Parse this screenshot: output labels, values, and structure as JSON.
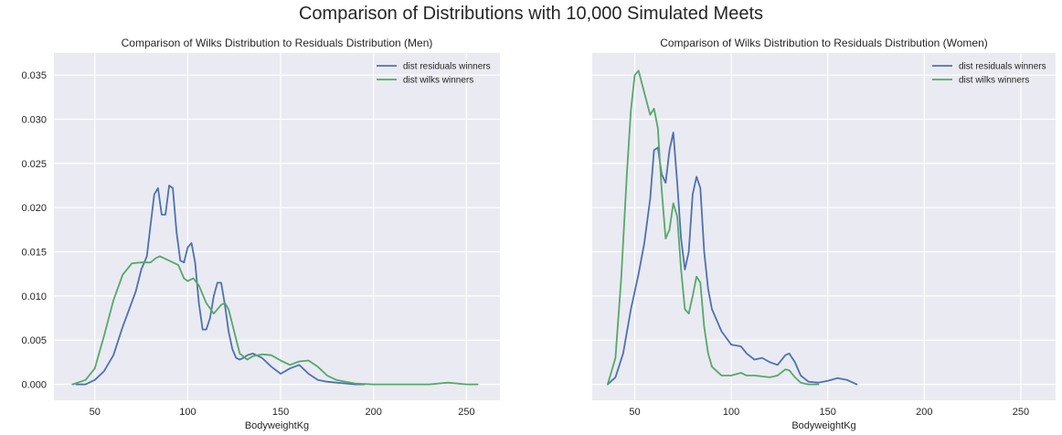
{
  "figure": {
    "suptitle": "Comparison of Distributions with 10,000 Simulated Meets"
  },
  "chart_data": [
    {
      "type": "line",
      "title": "Comparison of Wilks Distribution to Residuals Distribution (Men)",
      "xlabel": "BodyweightKg",
      "ylabel": "",
      "xlim": [
        28,
        268
      ],
      "ylim": [
        -0.0018,
        0.0375
      ],
      "xticks": [
        50,
        100,
        150,
        200,
        250
      ],
      "yticks": [
        0.0,
        0.005,
        0.01,
        0.015,
        0.02,
        0.025,
        0.03,
        0.035
      ],
      "ytick_labels": [
        "0.000",
        "0.005",
        "0.010",
        "0.015",
        "0.020",
        "0.025",
        "0.030",
        "0.035"
      ],
      "grid": true,
      "legend_position": "top-right",
      "series": [
        {
          "name": "dist residuals winners",
          "color": "#4c72b0",
          "x": [
            40,
            45,
            50,
            55,
            60,
            65,
            68,
            72,
            75,
            78,
            80,
            82,
            84,
            86,
            88,
            90,
            92,
            94,
            96,
            98,
            100,
            102,
            104,
            106,
            108,
            110,
            112,
            114,
            116,
            118,
            120,
            122,
            124,
            126,
            128,
            130,
            132,
            135,
            140,
            145,
            150,
            155,
            160,
            165,
            170,
            175,
            180,
            185,
            190,
            195
          ],
          "y": [
            0.0,
            0.0,
            0.0005,
            0.0015,
            0.0033,
            0.0065,
            0.0082,
            0.0105,
            0.013,
            0.0145,
            0.018,
            0.0215,
            0.0222,
            0.0192,
            0.0192,
            0.0225,
            0.0222,
            0.0172,
            0.014,
            0.0138,
            0.0155,
            0.016,
            0.0138,
            0.0092,
            0.0062,
            0.0062,
            0.0075,
            0.01,
            0.0115,
            0.0115,
            0.009,
            0.006,
            0.004,
            0.003,
            0.0028,
            0.003,
            0.0033,
            0.0035,
            0.003,
            0.002,
            0.0012,
            0.0018,
            0.0022,
            0.0012,
            0.0005,
            0.0003,
            0.0002,
            0.0001,
            0.0,
            0.0
          ]
        },
        {
          "name": "dist wilks winners",
          "color": "#55a868",
          "x": [
            38,
            45,
            50,
            55,
            60,
            65,
            70,
            75,
            80,
            83,
            85,
            90,
            95,
            98,
            100,
            103,
            106,
            110,
            114,
            118,
            120,
            122,
            125,
            128,
            132,
            135,
            140,
            145,
            150,
            155,
            160,
            165,
            170,
            175,
            180,
            185,
            190,
            200,
            210,
            220,
            230,
            240,
            250,
            256
          ],
          "y": [
            0.0,
            0.0005,
            0.0018,
            0.0055,
            0.0095,
            0.0124,
            0.0137,
            0.0138,
            0.0138,
            0.0143,
            0.0145,
            0.014,
            0.0135,
            0.012,
            0.0117,
            0.012,
            0.0112,
            0.0092,
            0.008,
            0.009,
            0.0092,
            0.0085,
            0.006,
            0.0035,
            0.0028,
            0.0032,
            0.0034,
            0.0033,
            0.0027,
            0.0022,
            0.0026,
            0.0027,
            0.002,
            0.001,
            0.0005,
            0.0003,
            0.0001,
            0.0,
            0.0,
            0.0,
            0.0,
            0.0002,
            0.0,
            0.0
          ]
        }
      ]
    },
    {
      "type": "line",
      "title": "Comparison of Wilks Distribution to Residuals Distribution (Women)",
      "xlabel": "BodyweightKg",
      "ylabel": "",
      "xlim": [
        28,
        268
      ],
      "ylim": [
        -0.0018,
        0.0375
      ],
      "xticks": [
        50,
        100,
        150,
        200,
        250
      ],
      "yticks": [
        0.0,
        0.005,
        0.01,
        0.015,
        0.02,
        0.025,
        0.03,
        0.035
      ],
      "grid": true,
      "legend_position": "top-right",
      "series": [
        {
          "name": "dist residuals winners",
          "color": "#4c72b0",
          "x": [
            36,
            40,
            44,
            48,
            52,
            55,
            58,
            60,
            62,
            64,
            66,
            68,
            70,
            72,
            74,
            76,
            78,
            80,
            82,
            84,
            86,
            88,
            90,
            95,
            100,
            105,
            108,
            112,
            116,
            120,
            124,
            128,
            130,
            133,
            136,
            140,
            145,
            150,
            155,
            160,
            165
          ],
          "y": [
            0.0,
            0.0008,
            0.0035,
            0.0085,
            0.0125,
            0.016,
            0.021,
            0.0265,
            0.0268,
            0.0238,
            0.0228,
            0.0265,
            0.0285,
            0.0228,
            0.0165,
            0.013,
            0.015,
            0.0215,
            0.0235,
            0.0222,
            0.015,
            0.0108,
            0.0085,
            0.006,
            0.0045,
            0.0043,
            0.0035,
            0.0028,
            0.003,
            0.0025,
            0.0022,
            0.0033,
            0.0035,
            0.0025,
            0.001,
            0.0003,
            0.0002,
            0.0004,
            0.0007,
            0.0005,
            0.0
          ]
        },
        {
          "name": "dist wilks winners",
          "color": "#55a868",
          "x": [
            36,
            40,
            43,
            46,
            48,
            50,
            52,
            55,
            58,
            60,
            62,
            64,
            66,
            68,
            70,
            72,
            74,
            76,
            78,
            80,
            82,
            84,
            86,
            88,
            90,
            95,
            100,
            105,
            108,
            112,
            116,
            120,
            124,
            128,
            130,
            133,
            136,
            140,
            145
          ],
          "y": [
            0.0,
            0.003,
            0.012,
            0.024,
            0.031,
            0.035,
            0.0355,
            0.033,
            0.0305,
            0.0312,
            0.029,
            0.022,
            0.0165,
            0.0175,
            0.0205,
            0.019,
            0.013,
            0.0085,
            0.008,
            0.01,
            0.0122,
            0.0115,
            0.0065,
            0.0035,
            0.002,
            0.001,
            0.001,
            0.0013,
            0.001,
            0.001,
            0.0009,
            0.0008,
            0.001,
            0.0017,
            0.0016,
            0.0008,
            0.0002,
            0.0,
            0.0
          ]
        }
      ]
    }
  ]
}
